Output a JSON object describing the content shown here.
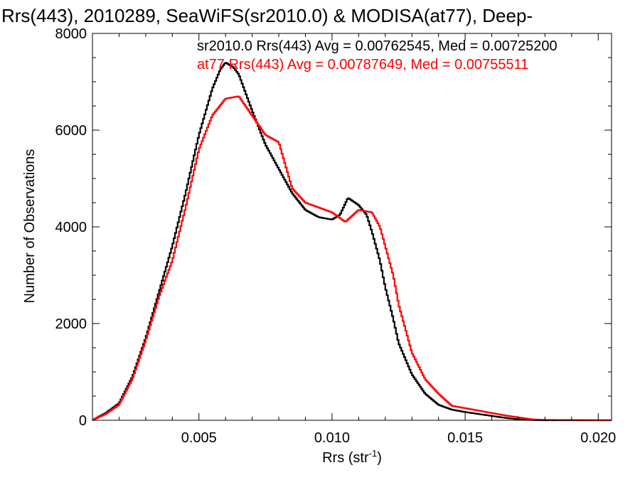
{
  "chart_data": {
    "type": "line",
    "title": "Rrs(443), 2010289, SeaWiFS(sr2010.0) & MODISA(at77), Deep-",
    "xlabel": "Rrs (str",
    "xlabel_sup": "-1",
    "xlabel_close": ")",
    "ylabel": "Number of Observations",
    "xlim": [
      0.001,
      0.0205
    ],
    "ylim": [
      0,
      8000
    ],
    "xticks": [
      0.005,
      0.01,
      0.015,
      0.02
    ],
    "xtick_labels": [
      "0.005",
      "0.010",
      "0.015",
      "0.020"
    ],
    "yticks": [
      0,
      2000,
      4000,
      6000,
      8000
    ],
    "ytick_labels": [
      "0",
      "2000",
      "4000",
      "6000",
      "8000"
    ],
    "grid": false,
    "legend_position": "top-right",
    "series": [
      {
        "name": "sr2010.0 Rrs(443) Avg = 0.00762545, Med = 0.00725200",
        "color": "#000000",
        "points": [
          [
            0.001,
            0
          ],
          [
            0.0015,
            150
          ],
          [
            0.002,
            350
          ],
          [
            0.0025,
            900
          ],
          [
            0.003,
            1700
          ],
          [
            0.0035,
            2650
          ],
          [
            0.004,
            3600
          ],
          [
            0.0045,
            4700
          ],
          [
            0.005,
            5900
          ],
          [
            0.0055,
            6850
          ],
          [
            0.0058,
            7250
          ],
          [
            0.006,
            7400
          ],
          [
            0.0063,
            7300
          ],
          [
            0.0065,
            7150
          ],
          [
            0.007,
            6400
          ],
          [
            0.0075,
            5700
          ],
          [
            0.008,
            5200
          ],
          [
            0.0085,
            4700
          ],
          [
            0.009,
            4350
          ],
          [
            0.0095,
            4200
          ],
          [
            0.01,
            4150
          ],
          [
            0.0103,
            4250
          ],
          [
            0.0106,
            4600
          ],
          [
            0.011,
            4450
          ],
          [
            0.0113,
            4250
          ],
          [
            0.0115,
            3900
          ],
          [
            0.0118,
            3300
          ],
          [
            0.012,
            2750
          ],
          [
            0.0123,
            2100
          ],
          [
            0.0125,
            1600
          ],
          [
            0.013,
            950
          ],
          [
            0.0135,
            550
          ],
          [
            0.014,
            320
          ],
          [
            0.0145,
            220
          ],
          [
            0.015,
            170
          ],
          [
            0.0155,
            130
          ],
          [
            0.016,
            90
          ],
          [
            0.0165,
            50
          ],
          [
            0.017,
            20
          ],
          [
            0.0175,
            5
          ],
          [
            0.018,
            0
          ],
          [
            0.0205,
            0
          ]
        ]
      },
      {
        "name": "at77 Rrs(443) Avg = 0.00787649, Med = 0.00755511",
        "color": "#ff0000",
        "points": [
          [
            0.001,
            0
          ],
          [
            0.0015,
            130
          ],
          [
            0.002,
            320
          ],
          [
            0.0025,
            850
          ],
          [
            0.003,
            1650
          ],
          [
            0.0035,
            2550
          ],
          [
            0.004,
            3300
          ],
          [
            0.0045,
            4400
          ],
          [
            0.005,
            5600
          ],
          [
            0.0055,
            6300
          ],
          [
            0.006,
            6650
          ],
          [
            0.0065,
            6700
          ],
          [
            0.007,
            6300
          ],
          [
            0.0075,
            5900
          ],
          [
            0.008,
            5750
          ],
          [
            0.0085,
            4800
          ],
          [
            0.009,
            4500
          ],
          [
            0.0095,
            4400
          ],
          [
            0.01,
            4300
          ],
          [
            0.0105,
            4100
          ],
          [
            0.011,
            4350
          ],
          [
            0.0115,
            4300
          ],
          [
            0.0118,
            4000
          ],
          [
            0.012,
            3600
          ],
          [
            0.0123,
            3000
          ],
          [
            0.0125,
            2400
          ],
          [
            0.013,
            1400
          ],
          [
            0.0135,
            850
          ],
          [
            0.014,
            550
          ],
          [
            0.0145,
            300
          ],
          [
            0.015,
            250
          ],
          [
            0.0155,
            200
          ],
          [
            0.016,
            150
          ],
          [
            0.0165,
            100
          ],
          [
            0.017,
            60
          ],
          [
            0.0175,
            20
          ],
          [
            0.018,
            8
          ],
          [
            0.0205,
            0
          ]
        ]
      }
    ]
  }
}
